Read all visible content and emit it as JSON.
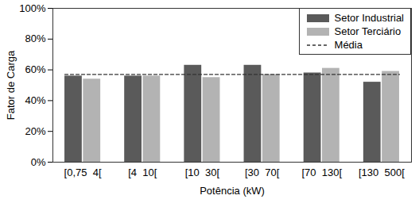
{
  "chart_data": {
    "type": "bar",
    "xlabel": "Potência (kW)",
    "ylabel": "Fator de Carga",
    "categories": [
      "[0,75  4[",
      "[4  10[",
      "[10  30[",
      "[30  70[",
      "[70  130[",
      "[130  500["
    ],
    "series": [
      {
        "name": "Setor Industrial",
        "color": "#5a5a5a",
        "values": [
          56,
          56,
          63,
          63,
          58,
          52
        ]
      },
      {
        "name": "Setor Terciário",
        "color": "#b3b3b3",
        "values": [
          54,
          56,
          55,
          57,
          61,
          59
        ]
      },
      {
        "name": "Média",
        "type": "line",
        "line_style": "dashed",
        "color": "#333333",
        "values": [
          57,
          57,
          57,
          57,
          57,
          57
        ]
      }
    ],
    "ylim": [
      0,
      100
    ],
    "yticks": [
      {
        "value": 0,
        "label": "0%"
      },
      {
        "value": 20,
        "label": "20%"
      },
      {
        "value": 40,
        "label": "40%"
      },
      {
        "value": 60,
        "label": "60%"
      },
      {
        "value": 80,
        "label": "80%"
      },
      {
        "value": 100,
        "label": "100%"
      }
    ],
    "grid": false,
    "legend": "upper right"
  }
}
